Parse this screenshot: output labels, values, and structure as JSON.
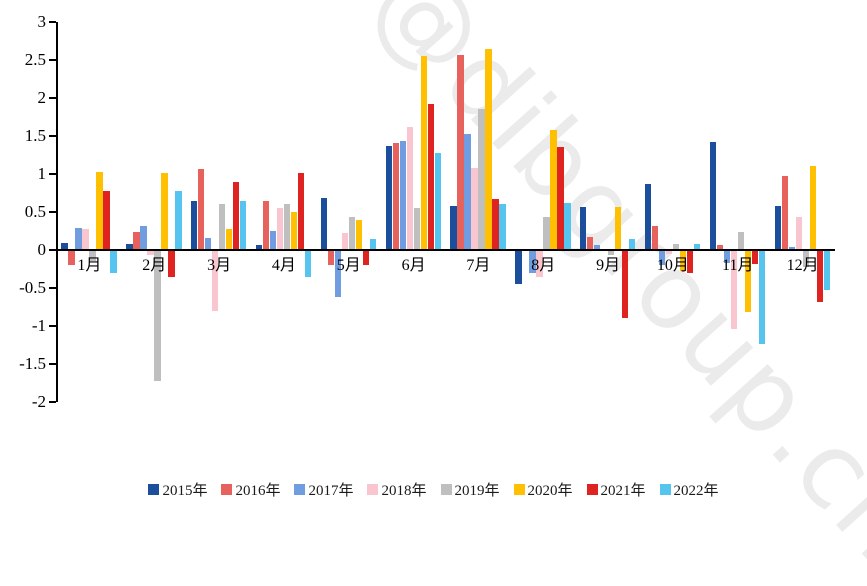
{
  "watermark": "@dibgroup.cn",
  "chart_data": {
    "type": "bar",
    "title": "",
    "xlabel": "",
    "ylabel": "",
    "grid": false,
    "legend_position": "bottom",
    "ylim": [
      -2,
      3
    ],
    "y_ticks": [
      {
        "label": "3",
        "value": 3
      },
      {
        "label": "2.5",
        "value": 2.5
      },
      {
        "label": "2",
        "value": 2
      },
      {
        "label": "1.5",
        "value": 1.5
      },
      {
        "label": "1",
        "value": 1
      },
      {
        "label": "0.5",
        "value": 0.5
      },
      {
        "label": "0",
        "value": 0
      },
      {
        "label": "-0.5",
        "value": -0.5
      },
      {
        "label": "-1",
        "value": -1
      },
      {
        "label": "-1.5",
        "value": -1.5
      },
      {
        "label": "-2",
        "value": -2
      }
    ],
    "categories": [
      "1月",
      "2月",
      "3月",
      "4月",
      "5月",
      "6月",
      "7月",
      "8月",
      "9月",
      "10月",
      "11月",
      "12月"
    ],
    "series": [
      {
        "name": "2015年",
        "color": "#1b4f9c",
        "values": [
          0.09,
          0.08,
          0.65,
          0.07,
          0.69,
          1.37,
          0.58,
          -0.45,
          0.57,
          0.87,
          1.42,
          0.58
        ]
      },
      {
        "name": "2016年",
        "color": "#e8625d",
        "values": [
          -0.2,
          0.24,
          1.06,
          0.65,
          -0.2,
          1.41,
          2.57,
          0.0,
          0.17,
          0.31,
          0.07,
          0.97
        ]
      },
      {
        "name": "2017年",
        "color": "#6f9ddf",
        "values": [
          0.29,
          0.32,
          0.16,
          0.25,
          -0.62,
          1.43,
          1.53,
          -0.3,
          0.07,
          -0.2,
          -0.17,
          0.04
        ]
      },
      {
        "name": "2018年",
        "color": "#f9c6d0",
        "values": [
          0.27,
          -0.06,
          -0.8,
          0.55,
          0.23,
          1.62,
          1.08,
          -0.35,
          0.0,
          -0.05,
          -1.04,
          0.44
        ]
      },
      {
        "name": "2019年",
        "color": "#bfbfbf",
        "values": [
          -0.15,
          -1.72,
          0.61,
          0.6,
          0.43,
          0.55,
          1.85,
          0.43,
          -0.07,
          0.08,
          0.24,
          -0.22
        ]
      },
      {
        "name": "2020年",
        "color": "#fec000",
        "values": [
          1.02,
          1.01,
          0.27,
          0.5,
          0.4,
          2.55,
          2.64,
          1.58,
          0.57,
          -0.27,
          -0.82,
          1.1
        ]
      },
      {
        "name": "2021年",
        "color": "#df2321",
        "values": [
          0.78,
          -0.35,
          0.89,
          1.01,
          -0.2,
          1.92,
          0.67,
          1.36,
          -0.89,
          -0.3,
          -0.19,
          -0.69
        ]
      },
      {
        "name": "2022年",
        "color": "#55c5f0",
        "values": [
          -0.3,
          0.77,
          0.64,
          -0.36,
          0.14,
          1.28,
          0.61,
          0.62,
          0.14,
          0.08,
          -1.24,
          -0.52
        ]
      }
    ]
  }
}
